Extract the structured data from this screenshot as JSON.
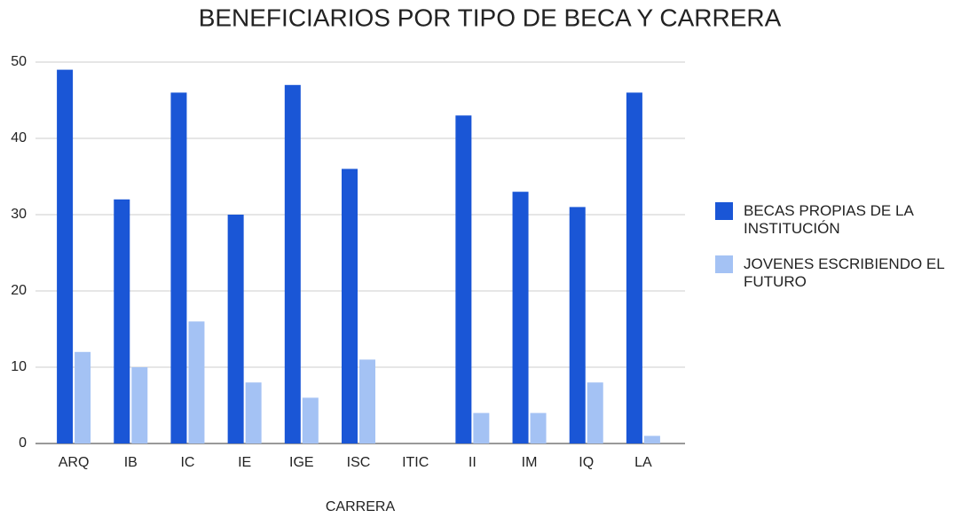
{
  "chart_data": {
    "type": "bar",
    "title": "BENEFICIARIOS POR TIPO DE BECA Y CARRERA",
    "x_label": "CARRERA",
    "categories": [
      "ARQ",
      "IB",
      "IC",
      "IE",
      "IGE",
      "ISC",
      "ITIC",
      "II",
      "IM",
      "IQ",
      "LA"
    ],
    "series": [
      {
        "name": "BECAS PROPIAS DE LA INSTITUCIÓN",
        "color": "#1a56d6",
        "values": [
          49,
          32,
          46,
          30,
          47,
          36,
          0,
          43,
          33,
          31,
          46
        ]
      },
      {
        "name": "JOVENES ESCRIBIENDO EL FUTURO",
        "color": "#a4c2f4",
        "values": [
          12,
          10,
          16,
          8,
          6,
          11,
          0,
          4,
          4,
          8,
          1
        ]
      }
    ],
    "ylim": [
      0,
      50
    ],
    "yticks": [
      0,
      10,
      20,
      30,
      40,
      50
    ],
    "grid": true,
    "legend": "right"
  }
}
